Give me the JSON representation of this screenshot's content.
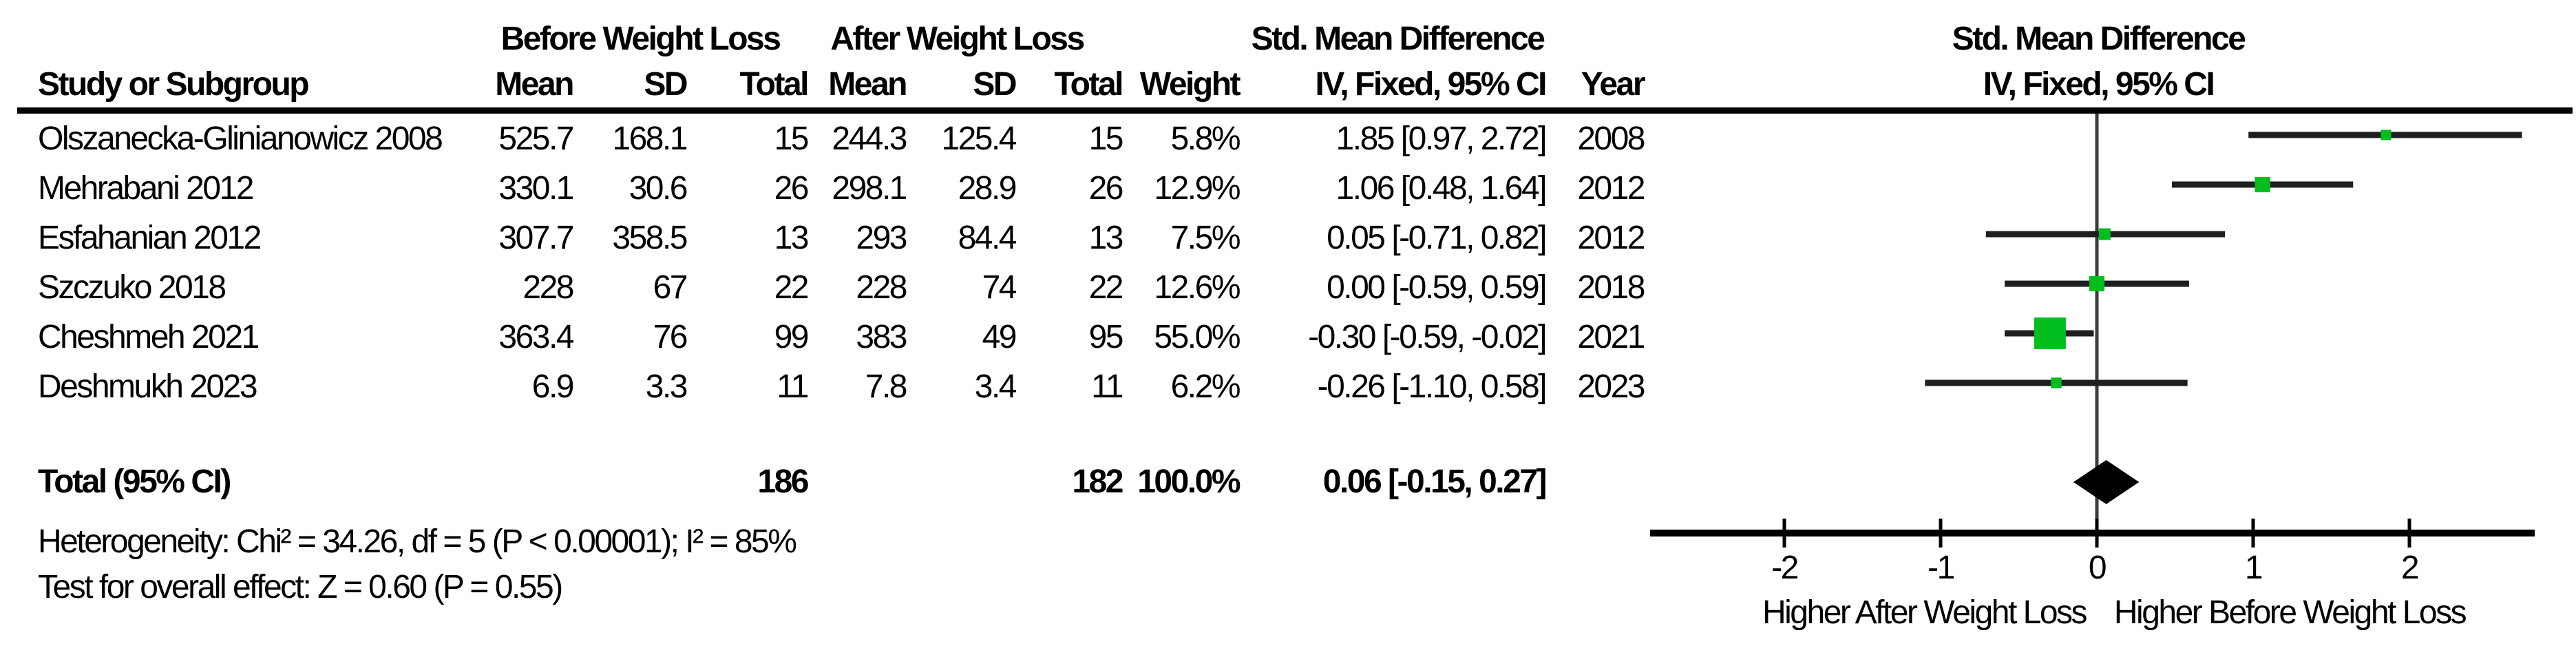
{
  "header": {
    "group_before": "Before Weight Loss",
    "group_after": "After Weight Loss",
    "group_smd": "Std. Mean Difference",
    "study": "Study or Subgroup",
    "mean": "Mean",
    "sd": "SD",
    "total": "Total",
    "weight": "Weight",
    "iv_fixed": "IV, Fixed, 95% CI",
    "year": "Year",
    "plot_title": "Std. Mean Difference",
    "plot_subtitle": "IV, Fixed, 95% CI"
  },
  "table": {
    "rows": [
      {
        "study": "Olszanecka-Glinianowicz 2008",
        "mean1": "525.7",
        "sd1": "168.1",
        "total1": "15",
        "mean2": "244.3",
        "sd2": "125.4",
        "total2": "15",
        "weight": "5.8%",
        "ci_text": "1.85 [0.97, 2.72]",
        "year": "2008"
      },
      {
        "study": "Mehrabani 2012",
        "mean1": "330.1",
        "sd1": "30.6",
        "total1": "26",
        "mean2": "298.1",
        "sd2": "28.9",
        "total2": "26",
        "weight": "12.9%",
        "ci_text": "1.06 [0.48, 1.64]",
        "year": "2012"
      },
      {
        "study": "Esfahanian 2012",
        "mean1": "307.7",
        "sd1": "358.5",
        "total1": "13",
        "mean2": "293",
        "sd2": "84.4",
        "total2": "13",
        "weight": "7.5%",
        "ci_text": "0.05 [-0.71, 0.82]",
        "year": "2012"
      },
      {
        "study": "Szczuko 2018",
        "mean1": "228",
        "sd1": "67",
        "total1": "22",
        "mean2": "228",
        "sd2": "74",
        "total2": "22",
        "weight": "12.6%",
        "ci_text": "0.00 [-0.59, 0.59]",
        "year": "2018"
      },
      {
        "study": "Cheshmeh 2021",
        "mean1": "363.4",
        "sd1": "76",
        "total1": "99",
        "mean2": "383",
        "sd2": "49",
        "total2": "95",
        "weight": "55.0%",
        "ci_text": "-0.30 [-0.59, -0.02]",
        "year": "2021"
      },
      {
        "study": "Deshmukh 2023",
        "mean1": "6.9",
        "sd1": "3.3",
        "total1": "11",
        "mean2": "7.8",
        "sd2": "3.4",
        "total2": "11",
        "weight": "6.2%",
        "ci_text": "-0.26 [-1.10, 0.58]",
        "year": "2023"
      }
    ],
    "total_row": {
      "label": "Total (95% CI)",
      "total1": "186",
      "total2": "182",
      "weight": "100.0%",
      "ci_text": "0.06 [-0.15, 0.27]"
    },
    "heterogeneity": "Heterogeneity: Chi² = 34.26, df = 5 (P < 0.00001); I² = 85%",
    "overall_effect": "Test for overall effect: Z = 0.60 (P = 0.55)"
  },
  "chart_data": {
    "type": "forest",
    "title": "Std. Mean Difference",
    "subtitle": "IV, Fixed, 95% CI",
    "effect_measure": "Std. Mean Difference, IV, Fixed, 95% CI",
    "studies": [
      {
        "name": "Olszanecka-Glinianowicz 2008",
        "year": 2008,
        "smd": 1.85,
        "ci_low": 0.97,
        "ci_high": 2.72,
        "weight_pct": 5.8
      },
      {
        "name": "Mehrabani 2012",
        "year": 2012,
        "smd": 1.06,
        "ci_low": 0.48,
        "ci_high": 1.64,
        "weight_pct": 12.9
      },
      {
        "name": "Esfahanian 2012",
        "year": 2012,
        "smd": 0.05,
        "ci_low": -0.71,
        "ci_high": 0.82,
        "weight_pct": 7.5
      },
      {
        "name": "Szczuko 2018",
        "year": 2018,
        "smd": 0.0,
        "ci_low": -0.59,
        "ci_high": 0.59,
        "weight_pct": 12.6
      },
      {
        "name": "Cheshmeh 2021",
        "year": 2021,
        "smd": -0.3,
        "ci_low": -0.59,
        "ci_high": -0.02,
        "weight_pct": 55.0
      },
      {
        "name": "Deshmukh 2023",
        "year": 2023,
        "smd": -0.26,
        "ci_low": -1.1,
        "ci_high": 0.58,
        "weight_pct": 6.2
      }
    ],
    "total": {
      "label": "Total (95% CI)",
      "smd": 0.06,
      "ci_low": -0.15,
      "ci_high": 0.27,
      "weight_pct": 100.0
    },
    "axis": {
      "ticks": [
        -2,
        -1,
        0,
        1,
        2
      ],
      "xlim": [
        -2.86,
        2.8
      ],
      "label_left": "Higher After Weight Loss",
      "label_right": "Higher Before Weight Loss"
    },
    "marker_color": "#00BE1E",
    "line_color": "#1f1f1f",
    "diamond_color": "#000000"
  }
}
